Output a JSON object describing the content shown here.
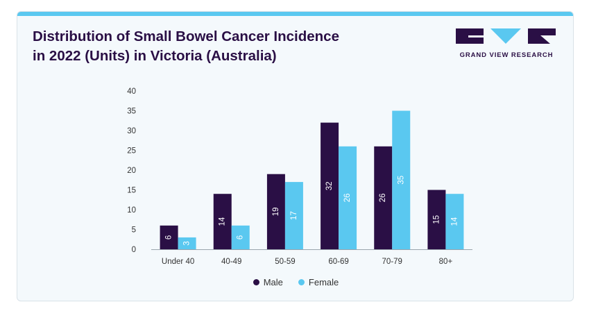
{
  "header": {
    "title_line1": "Distribution of Small Bowel Cancer Incidence",
    "title_line2": "in 2022 (Units) in Victoria (Australia)",
    "logo_text": "GRAND VIEW RESEARCH"
  },
  "colors": {
    "male": "#2a0f45",
    "female": "#5ac8f0",
    "accent_bar": "#5ac8f0",
    "title": "#2a0f45"
  },
  "chart_data": {
    "type": "bar",
    "title": "Distribution of Small Bowel Cancer Incidence in 2022 (Units) in Victoria (Australia)",
    "categories": [
      "Under 40",
      "40-49",
      "50-59",
      "60-69",
      "70-79",
      "80+"
    ],
    "series": [
      {
        "name": "Male",
        "values": [
          6,
          14,
          19,
          32,
          26,
          15
        ]
      },
      {
        "name": "Female",
        "values": [
          3,
          6,
          17,
          26,
          35,
          14
        ]
      }
    ],
    "yticks": [
      0,
      5,
      10,
      15,
      20,
      25,
      30,
      35,
      40
    ],
    "ylim": [
      0,
      40
    ],
    "xlabel": "",
    "ylabel": "",
    "grid": false,
    "legend_position": "bottom-center"
  }
}
